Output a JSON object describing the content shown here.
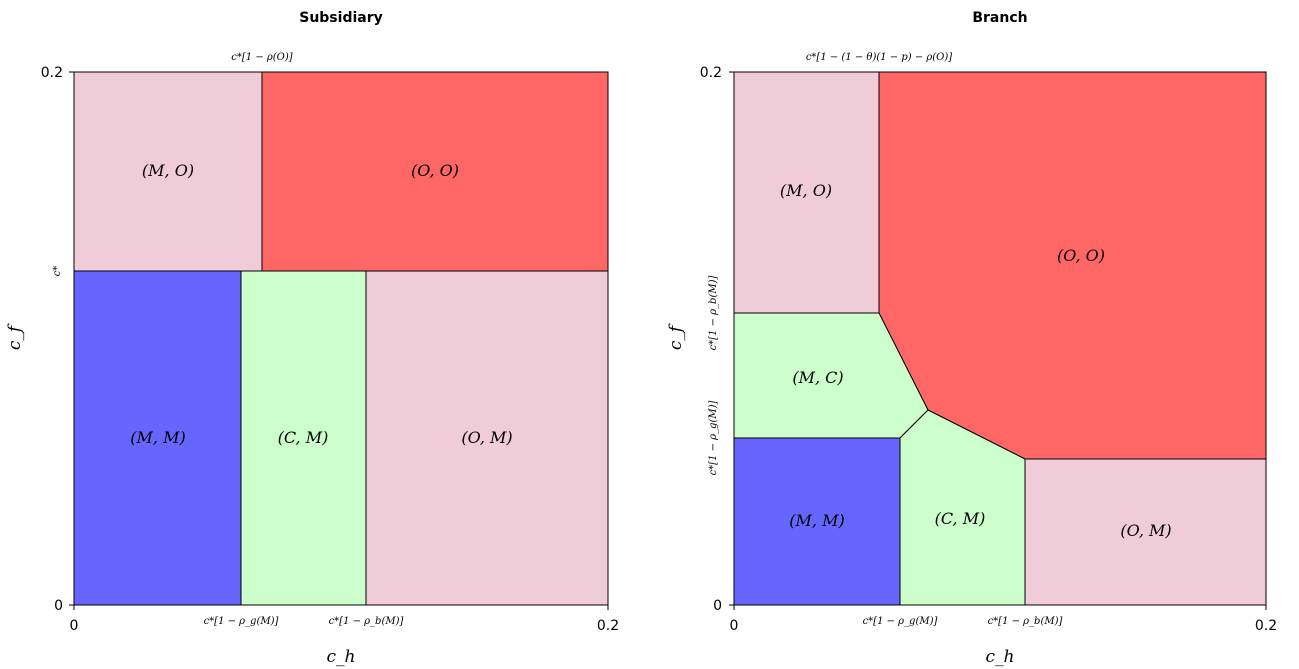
{
  "colors": {
    "mo": "#f0cbd8",
    "oo": "#ff6666",
    "mm": "#6666ff",
    "cm": "#ccffcc",
    "om": "#f0cbd8",
    "mc": "#ccffcc"
  },
  "subsidiary": {
    "title": "Subsidiary",
    "xlabel": "c_h",
    "ylabel": "c_f",
    "x_ticks": [
      "0",
      "0.2"
    ],
    "y_ticks": [
      "0.2",
      "0"
    ],
    "top_annotation": "c*[1 − ρ(O)]",
    "y_annotation": "c*",
    "bottom_annotations": [
      "c*[1 − ρ_g(M)]",
      "c*[1 − ρ_b(M)]"
    ],
    "regions": {
      "mo": "(M, O)",
      "oo": "(O, O)",
      "mm": "(M, M)",
      "cm": "(C, M)",
      "om": "(O, M)"
    }
  },
  "branch": {
    "title": "Branch",
    "xlabel": "c_h",
    "ylabel": "c_f",
    "x_ticks": [
      "0",
      "0.2"
    ],
    "y_ticks": [
      "0.2",
      "0"
    ],
    "top_annotation": "c*[1 − (1 − θ)(1 − p) − ρ(O)]",
    "left_annotations": [
      "c*[1 − ρ_b(M)]",
      "c*[1 − ρ_g(M)]"
    ],
    "bottom_annotations": [
      "c*[1 − ρ_g(M)]",
      "c*[1 − ρ_b(M)]"
    ],
    "regions": {
      "mo": "(M, O)",
      "oo": "(O, O)",
      "mc": "(M, C)",
      "mm": "(M, M)",
      "cm": "(C, M)",
      "om": "(O, M)"
    }
  }
}
